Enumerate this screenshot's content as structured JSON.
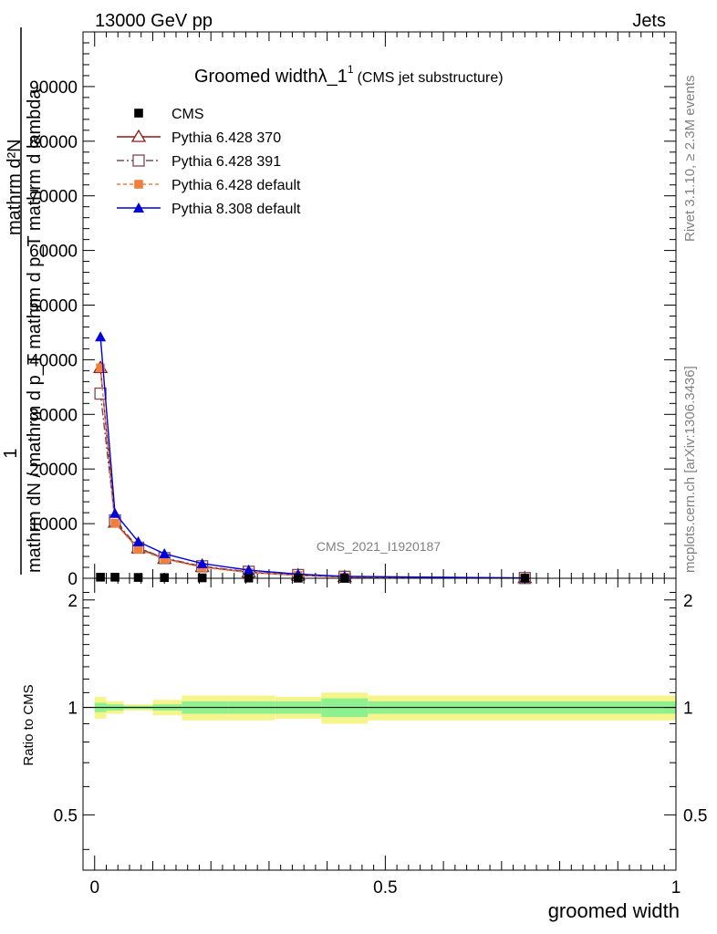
{
  "header": {
    "left": "13000 GeV pp",
    "right": "Jets"
  },
  "title": {
    "main": "Groomed width",
    "lambda": "λ_1",
    "sup": "1",
    "sub": "(CMS jet substructure)"
  },
  "side": {
    "rivet": "Rivet 3.1.10, ≥ 2.3M events",
    "mcplots": "mcplots.cern.ch [arXiv:1306.3436]"
  },
  "analysis_id": "CMS_2021_I1920187",
  "chart_data": [
    {
      "type": "line",
      "panel": "main",
      "xlabel": "groomed width",
      "ylabel": {
        "numerator": "1",
        "line1": "mathrm d²N",
        "line2": "mathrm dN / mathrm d p_T mathrm d p_T mathrm d lambda"
      },
      "xlim": [
        -0.02,
        1.0
      ],
      "ylim": [
        0,
        100000
      ],
      "y_ticks": [
        0,
        10000,
        20000,
        30000,
        40000,
        50000,
        60000,
        70000,
        80000,
        90000
      ],
      "y_tick_labels": [
        "0",
        "10000",
        "20000",
        "30000",
        "40000",
        "50000",
        "60000",
        "70000",
        "80000",
        "90000"
      ],
      "x_ticks": [
        0,
        0.5,
        1
      ],
      "x_tick_labels": [
        "0",
        "0.5",
        "1"
      ],
      "grid": false,
      "legend_position": "top-left",
      "series": [
        {
          "name": "CMS",
          "color": "#000000",
          "marker": "filled-square",
          "dash": "none",
          "x": [
            0.01,
            0.035,
            0.075,
            0.12,
            0.185,
            0.265,
            0.35,
            0.43,
            0.74
          ],
          "y": [
            200,
            200,
            150,
            120,
            80,
            40,
            20,
            10,
            2
          ]
        },
        {
          "name": "Pythia 6.428 370",
          "color": "#8b1a1a",
          "marker": "open-triangle",
          "dash": "none",
          "x": [
            0.01,
            0.035,
            0.075,
            0.12,
            0.185,
            0.265,
            0.35,
            0.43,
            0.74
          ],
          "y": [
            38500,
            10200,
            5500,
            3600,
            2100,
            1100,
            550,
            250,
            40
          ]
        },
        {
          "name": "Pythia 6.428 391",
          "color": "#7a4a55",
          "marker": "open-square",
          "dash": "8,3,2,3",
          "x": [
            0.01,
            0.035,
            0.075,
            0.12,
            0.185,
            0.265,
            0.35,
            0.43,
            0.74
          ],
          "y": [
            33800,
            10600,
            5600,
            3700,
            2200,
            1200,
            600,
            280,
            45
          ]
        },
        {
          "name": "Pythia 6.428 default",
          "color": "#f07f3c",
          "marker": "filled-square",
          "dash": "4,3",
          "x": [
            0.01,
            0.035,
            0.075,
            0.12,
            0.185,
            0.265,
            0.35,
            0.43,
            0.74
          ],
          "y": [
            38500,
            10100,
            5300,
            3500,
            2000,
            1050,
            520,
            240,
            40
          ]
        },
        {
          "name": "Pythia 8.308 default",
          "color": "#0000dd",
          "marker": "filled-triangle",
          "dash": "none",
          "x": [
            0.01,
            0.035,
            0.075,
            0.12,
            0.185,
            0.265,
            0.35,
            0.43,
            0.74
          ],
          "y": [
            44200,
            11900,
            6700,
            4500,
            2700,
            1500,
            750,
            350,
            60
          ]
        }
      ]
    },
    {
      "type": "area",
      "panel": "ratio",
      "ylabel": "Ratio to CMS",
      "xlabel": "groomed width",
      "xlim": [
        -0.02,
        1.0
      ],
      "ylim": [
        0.35,
        2.3
      ],
      "y_scale": "log",
      "y_ticks": [
        0.5,
        1,
        2
      ],
      "y_tick_labels": [
        "0.5",
        "1",
        "2"
      ],
      "x_ticks": [
        0,
        0.5,
        1
      ],
      "x_tick_labels": [
        "0",
        "0.5",
        "1"
      ],
      "reference_line": 1,
      "bins": [
        {
          "x0": 0.0,
          "x1": 0.02,
          "stat": 0.03,
          "total": 0.07
        },
        {
          "x0": 0.02,
          "x1": 0.05,
          "stat": 0.02,
          "total": 0.04
        },
        {
          "x0": 0.05,
          "x1": 0.1,
          "stat": 0.01,
          "total": 0.02
        },
        {
          "x0": 0.1,
          "x1": 0.15,
          "stat": 0.02,
          "total": 0.05
        },
        {
          "x0": 0.15,
          "x1": 0.23,
          "stat": 0.04,
          "total": 0.08
        },
        {
          "x0": 0.23,
          "x1": 0.31,
          "stat": 0.04,
          "total": 0.08
        },
        {
          "x0": 0.31,
          "x1": 0.39,
          "stat": 0.04,
          "total": 0.07
        },
        {
          "x0": 0.39,
          "x1": 0.47,
          "stat": 0.06,
          "total": 0.1
        },
        {
          "x0": 0.47,
          "x1": 1.0,
          "stat": 0.04,
          "total": 0.08
        }
      ],
      "band_colors": {
        "stat": "#8ff08f",
        "total": "#f5f58c"
      }
    }
  ]
}
